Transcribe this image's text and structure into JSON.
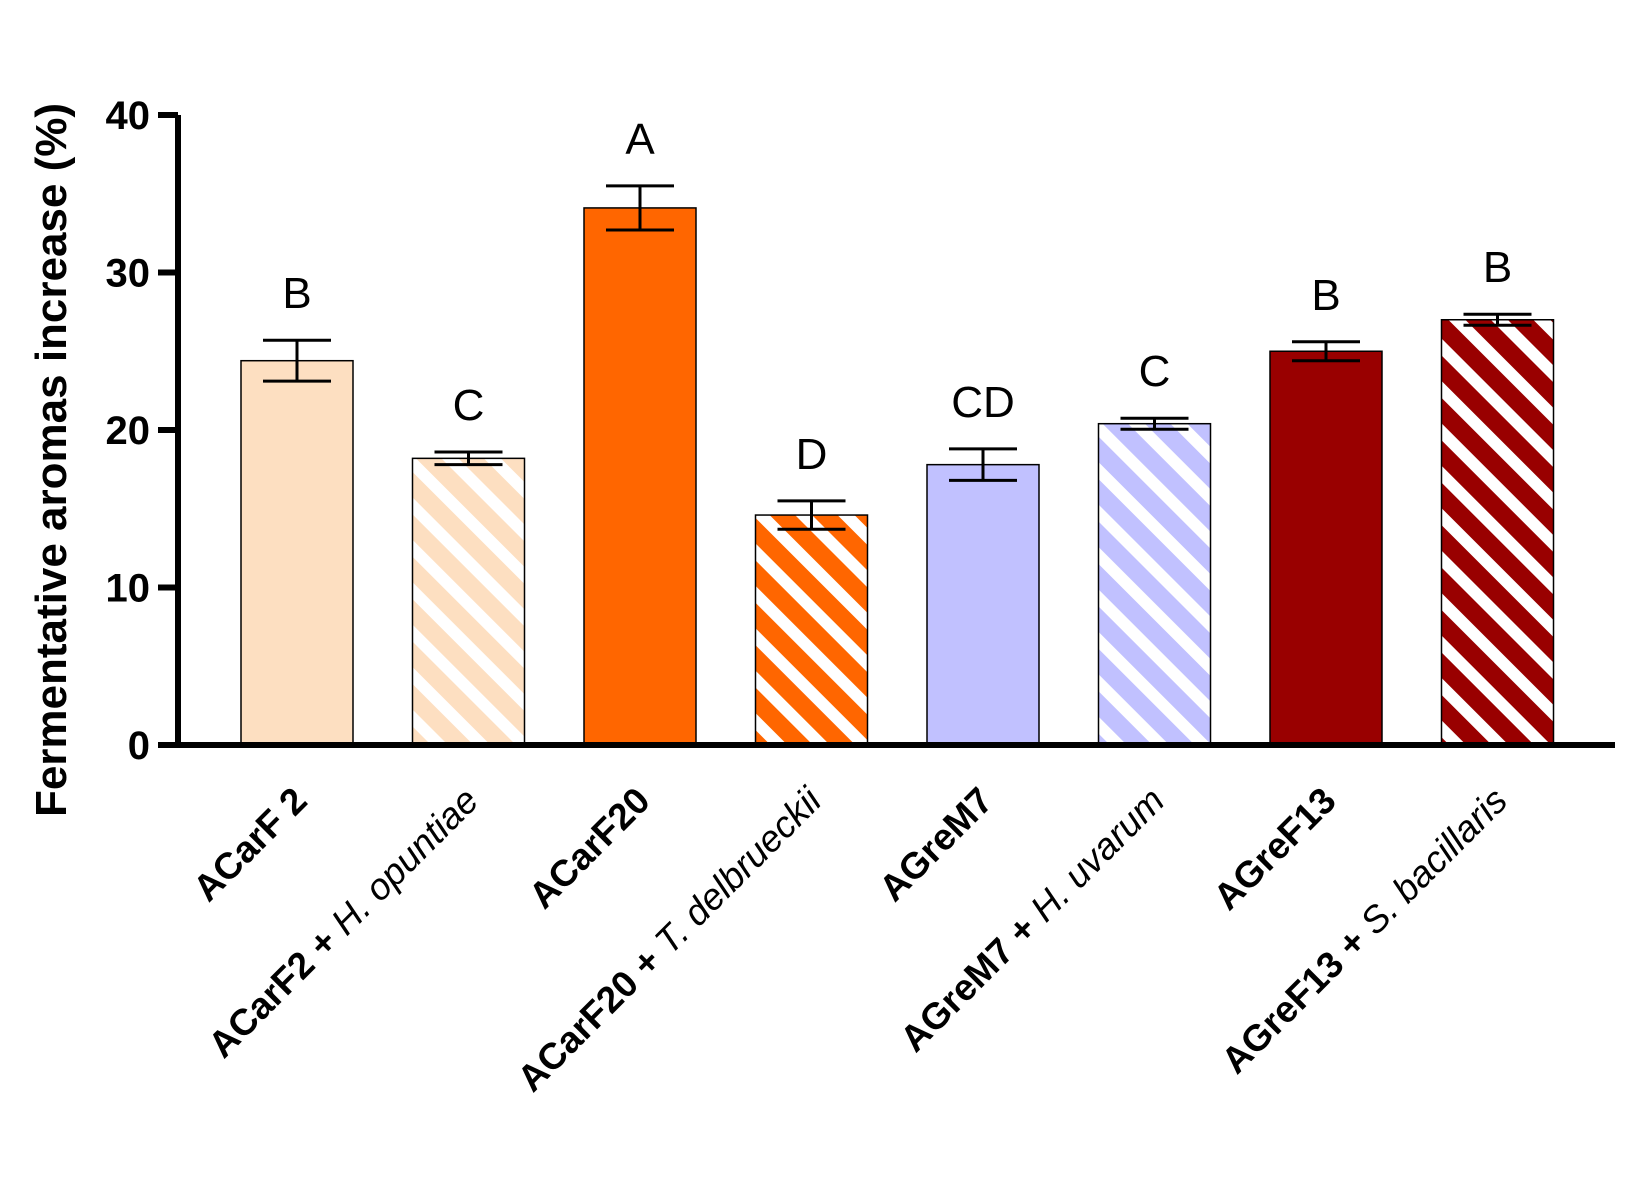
{
  "chart_data": {
    "type": "bar",
    "title": "",
    "xlabel": "",
    "ylabel": "Fermentative aromas increase (%)",
    "ylim": [
      0,
      40
    ],
    "yticks": [
      0,
      10,
      20,
      30,
      40
    ],
    "grid": false,
    "categories": [
      {
        "bold": "ACarF 2",
        "italic": "",
        "pattern": "solid",
        "color": "#FDDFC1",
        "value": 24.4,
        "error": 1.3,
        "letter": "B"
      },
      {
        "bold": "ACarF2 + ",
        "italic": "H. opuntiae",
        "pattern": "hatched",
        "color": "#FDDFC1",
        "value": 18.2,
        "error": 0.4,
        "letter": "C"
      },
      {
        "bold": "ACarF20",
        "italic": "",
        "pattern": "solid",
        "color": "#FF6600",
        "value": 34.1,
        "error": 1.4,
        "letter": "A"
      },
      {
        "bold": "ACarF20 + ",
        "italic": "T. delbrueckii",
        "pattern": "hatched",
        "color": "#FF6600",
        "value": 14.6,
        "error": 0.9,
        "letter": "D"
      },
      {
        "bold": "AGreM7",
        "italic": "",
        "pattern": "solid",
        "color": "#C1C1FF",
        "value": 17.8,
        "error": 1.0,
        "letter": "CD"
      },
      {
        "bold": "AGreM7 + ",
        "italic": "H. uvarum",
        "pattern": "hatched",
        "color": "#C1C1FF",
        "value": 20.4,
        "error": 0.35,
        "letter": "C"
      },
      {
        "bold": "AGreF13",
        "italic": "",
        "pattern": "solid",
        "color": "#990000",
        "value": 25.0,
        "error": 0.6,
        "letter": "B"
      },
      {
        "bold": "AGreF13 + ",
        "italic": "S. bacillaris",
        "pattern": "hatched",
        "color": "#990000",
        "value": 27.0,
        "error": 0.35,
        "letter": "B"
      }
    ]
  }
}
